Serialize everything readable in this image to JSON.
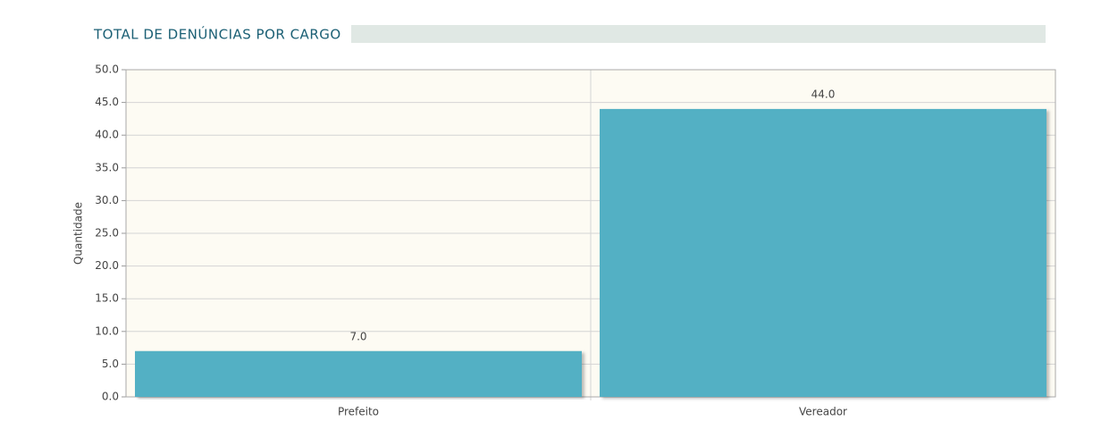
{
  "chart_data": {
    "type": "bar",
    "title": "TOTAL DE DENÚNCIAS POR CARGO",
    "y_label": "Quantidade",
    "categories": [
      "Prefeito",
      "Vereador"
    ],
    "values": [
      7,
      44
    ],
    "value_labels": [
      "7.0",
      "44.0"
    ],
    "color": "#52b0c4",
    "ylim": [
      0,
      50
    ],
    "yticks": [
      {
        "value": 0,
        "label": "0.0"
      },
      {
        "value": 5,
        "label": "5.0"
      },
      {
        "value": 10,
        "label": "10.0"
      },
      {
        "value": 15,
        "label": "15.0"
      },
      {
        "value": 20,
        "label": "20.0"
      },
      {
        "value": 25,
        "label": "25.0"
      },
      {
        "value": 30,
        "label": "30.0"
      },
      {
        "value": 35,
        "label": "35.0"
      },
      {
        "value": 40,
        "label": "40.0"
      },
      {
        "value": 45,
        "label": "45.0"
      },
      {
        "value": 50,
        "label": "50.0"
      }
    ],
    "grid": true
  }
}
